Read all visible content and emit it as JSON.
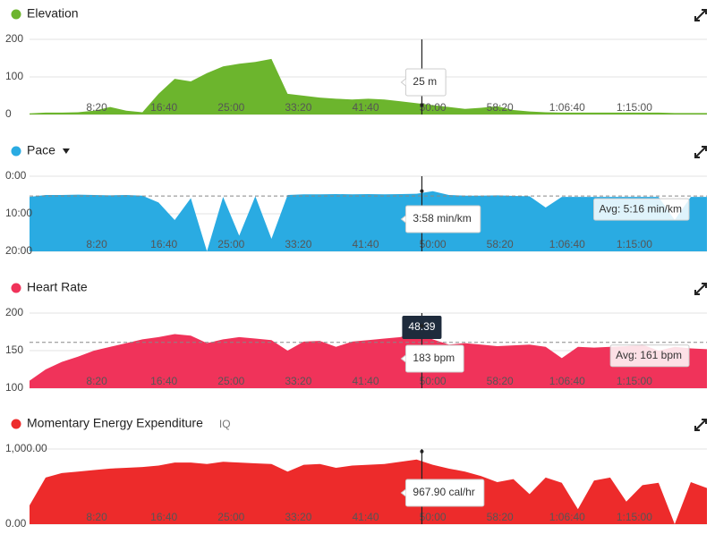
{
  "chart_data": [
    {
      "type": "area",
      "title": "Elevation",
      "color": "#6cb52d",
      "xlim": [
        0,
        5040
      ],
      "ylim": [
        0,
        200
      ],
      "yticks": [
        0,
        100,
        200
      ],
      "xticks": [
        {
          "value": 500,
          "label": "8:20"
        },
        {
          "value": 1000,
          "label": "16:40"
        },
        {
          "value": 1500,
          "label": "25:00"
        },
        {
          "value": 2000,
          "label": "33:20"
        },
        {
          "value": 2500,
          "label": "41:40"
        },
        {
          "value": 3000,
          "label": "50:00"
        },
        {
          "value": 3500,
          "label": "58:20"
        },
        {
          "value": 4000,
          "label": "1:06:40"
        },
        {
          "value": 4500,
          "label": "1:15:00"
        }
      ],
      "x": [
        0,
        120,
        240,
        360,
        480,
        600,
        720,
        840,
        960,
        1080,
        1200,
        1320,
        1440,
        1560,
        1680,
        1800,
        1920,
        2040,
        2160,
        2280,
        2400,
        2520,
        2640,
        2760,
        2880,
        3000,
        3120,
        3240,
        3360,
        3480,
        3600,
        3720,
        3840,
        3960,
        4080,
        4200,
        4320,
        4440,
        4560,
        4680,
        4800,
        4920,
        5040
      ],
      "values": [
        3,
        5,
        5,
        6,
        10,
        20,
        10,
        6,
        55,
        95,
        88,
        110,
        128,
        135,
        140,
        148,
        55,
        50,
        45,
        42,
        40,
        42,
        40,
        35,
        30,
        25,
        20,
        15,
        18,
        22,
        12,
        8,
        6,
        5,
        5,
        5,
        5,
        5,
        5,
        5,
        4,
        4,
        4
      ],
      "cursor_x": 2919,
      "readout": {
        "value": 25,
        "label": "25 m"
      }
    },
    {
      "type": "area",
      "title": "Pace",
      "color": "#2aabe2",
      "xlim": [
        0,
        5040
      ],
      "ylim": [
        1200,
        0
      ],
      "yticks": [
        {
          "value": 0,
          "label": "0:00"
        },
        {
          "value": 600,
          "label": "10:00"
        },
        {
          "value": 1200,
          "label": "20:00"
        }
      ],
      "xticks": [
        {
          "value": 500,
          "label": "8:20"
        },
        {
          "value": 1000,
          "label": "16:40"
        },
        {
          "value": 1500,
          "label": "25:00"
        },
        {
          "value": 2000,
          "label": "33:20"
        },
        {
          "value": 2500,
          "label": "41:40"
        },
        {
          "value": 3000,
          "label": "50:00"
        },
        {
          "value": 3500,
          "label": "58:20"
        },
        {
          "value": 4000,
          "label": "1:06:40"
        },
        {
          "value": 4500,
          "label": "1:15:00"
        }
      ],
      "x": [
        0,
        120,
        240,
        360,
        480,
        600,
        720,
        840,
        960,
        1080,
        1200,
        1320,
        1440,
        1560,
        1680,
        1800,
        1920,
        2040,
        2160,
        2280,
        2400,
        2520,
        2640,
        2760,
        2880,
        3000,
        3120,
        3240,
        3360,
        3480,
        3600,
        3720,
        3840,
        3960,
        4080,
        4200,
        4320,
        4440,
        4560,
        4680,
        4800,
        4920,
        5040
      ],
      "values": [
        330,
        300,
        300,
        295,
        300,
        305,
        300,
        310,
        420,
        700,
        350,
        1200,
        330,
        950,
        320,
        1000,
        300,
        290,
        290,
        285,
        290,
        285,
        290,
        285,
        280,
        240,
        300,
        310,
        310,
        305,
        315,
        320,
        500,
        330,
        330,
        330,
        330,
        330,
        330,
        330,
        700,
        330,
        330
      ],
      "average": {
        "value": 316,
        "label": "Avg: 5:16 min/km"
      },
      "cursor_x": 2919,
      "readout": {
        "value": 238,
        "label": "3:58 min/km"
      }
    },
    {
      "type": "area",
      "title": "Heart Rate",
      "color": "#f0335a",
      "xlim": [
        0,
        5040
      ],
      "ylim": [
        100,
        200
      ],
      "yticks": [
        100,
        150,
        200
      ],
      "xticks": [
        {
          "value": 500,
          "label": "8:20"
        },
        {
          "value": 1000,
          "label": "16:40"
        },
        {
          "value": 1500,
          "label": "25:00"
        },
        {
          "value": 2000,
          "label": "33:20"
        },
        {
          "value": 2500,
          "label": "41:40"
        },
        {
          "value": 3000,
          "label": "50:00"
        },
        {
          "value": 3500,
          "label": "58:20"
        },
        {
          "value": 4000,
          "label": "1:06:40"
        },
        {
          "value": 4500,
          "label": "1:15:00"
        }
      ],
      "x": [
        0,
        120,
        240,
        360,
        480,
        600,
        720,
        840,
        960,
        1080,
        1200,
        1320,
        1440,
        1560,
        1680,
        1800,
        1920,
        2040,
        2160,
        2280,
        2400,
        2520,
        2640,
        2760,
        2880,
        3000,
        3120,
        3240,
        3360,
        3480,
        3600,
        3720,
        3840,
        3960,
        4080,
        4200,
        4320,
        4440,
        4560,
        4680,
        4800,
        4920,
        5040
      ],
      "values": [
        110,
        125,
        135,
        142,
        150,
        155,
        160,
        165,
        168,
        172,
        170,
        160,
        165,
        168,
        166,
        164,
        150,
        162,
        163,
        155,
        162,
        164,
        166,
        168,
        175,
        165,
        158,
        160,
        158,
        156,
        157,
        158,
        155,
        140,
        155,
        154,
        155,
        156,
        158,
        150,
        155,
        153,
        152
      ],
      "average": {
        "value": 161,
        "label": "Avg: 161 bpm"
      },
      "cursor_x": {
        "value": 2919,
        "label": "48:39"
      },
      "readout": {
        "value": 183,
        "label": "183 bpm"
      }
    },
    {
      "type": "area",
      "title": "Momentary Energy Expenditure",
      "badge": "IQ",
      "color": "#ed2b2b",
      "xlim": [
        0,
        5040
      ],
      "ylim": [
        0,
        1000
      ],
      "yticks": [
        {
          "value": 0,
          "label": "0.00"
        },
        {
          "value": 1000,
          "label": "1,000.00"
        }
      ],
      "xticks": [
        {
          "value": 500,
          "label": "8:20"
        },
        {
          "value": 1000,
          "label": "16:40"
        },
        {
          "value": 1500,
          "label": "25:00"
        },
        {
          "value": 2000,
          "label": "33:20"
        },
        {
          "value": 2500,
          "label": "41:40"
        },
        {
          "value": 3000,
          "label": "50:00"
        },
        {
          "value": 3500,
          "label": "58:20"
        },
        {
          "value": 4000,
          "label": "1:06:40"
        },
        {
          "value": 4500,
          "label": "1:15:00"
        }
      ],
      "x": [
        0,
        120,
        240,
        360,
        480,
        600,
        720,
        840,
        960,
        1080,
        1200,
        1320,
        1440,
        1560,
        1680,
        1800,
        1920,
        2040,
        2160,
        2280,
        2400,
        2520,
        2640,
        2760,
        2880,
        3000,
        3120,
        3240,
        3360,
        3480,
        3600,
        3720,
        3840,
        3960,
        4080,
        4200,
        4320,
        4440,
        4560,
        4680,
        4800,
        4920,
        5040
      ],
      "values": [
        250,
        620,
        680,
        700,
        720,
        740,
        750,
        760,
        780,
        820,
        820,
        800,
        830,
        820,
        810,
        800,
        700,
        790,
        800,
        750,
        780,
        790,
        800,
        830,
        860,
        790,
        740,
        700,
        640,
        560,
        600,
        400,
        620,
        550,
        200,
        580,
        620,
        300,
        520,
        550,
        0,
        560,
        480
      ],
      "cursor_x": 2919,
      "readout": {
        "value": 967.9,
        "label": "967.90 cal/hr"
      }
    }
  ]
}
